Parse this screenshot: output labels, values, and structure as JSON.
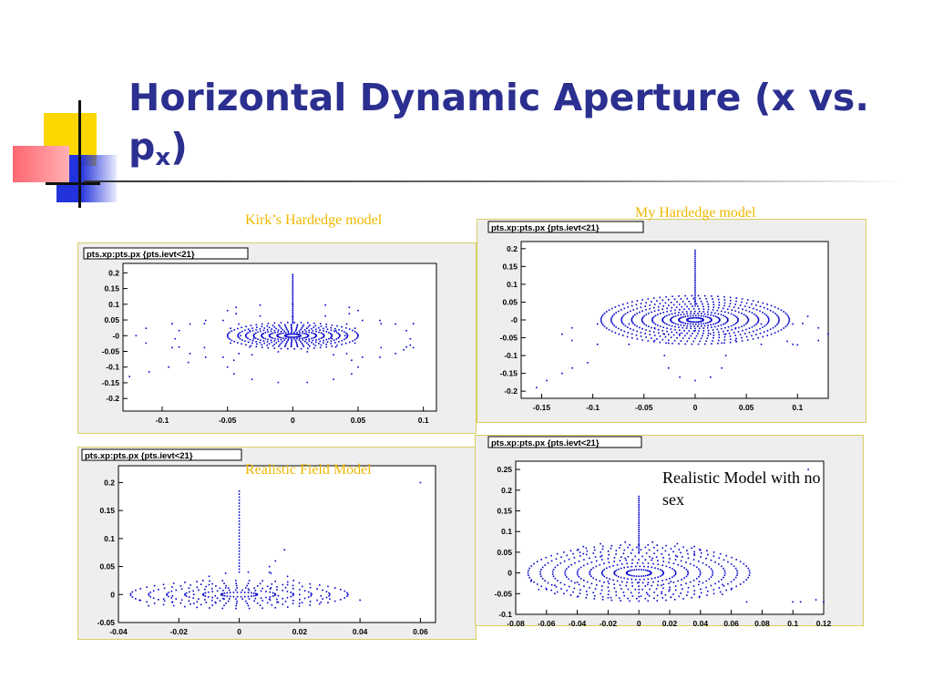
{
  "slide": {
    "title_main": "Horizontal Dynamic Aperture (x vs. p",
    "title_sub": "x",
    "title_close": ")",
    "note": "Realistic Model with no sex",
    "colors": {
      "title": "#2b2f8f",
      "caption": "#f0b800",
      "points": "#0000cc"
    }
  },
  "chart_data": [
    {
      "type": "scatter",
      "title": "pts.xp:pts.px {pts.ievt<21}",
      "caption": "Kirk’s Hardedge model",
      "xlim": [
        -0.13,
        0.11
      ],
      "ylim": [
        -0.24,
        0.23
      ],
      "xticks": [
        -0.1,
        -0.05,
        0,
        0.05,
        0.1
      ],
      "xticklabels": [
        "-0.1",
        "-0.05",
        "0",
        "0.05",
        "0.1"
      ],
      "yticks": [
        0.2,
        0.15,
        0.1,
        0.05,
        0,
        -0.05,
        -0.1,
        -0.15,
        -0.2
      ],
      "yticklabels": [
        "0.2",
        "0.15",
        "0.1",
        "0.05",
        "-0",
        "-0.05",
        "-0.1",
        "-0.15",
        "-0.2"
      ],
      "orbits": [
        [
          0,
          0,
          0.006,
          0.005
        ],
        [
          0,
          0,
          0.012,
          0.01
        ],
        [
          0,
          0,
          0.018,
          0.015
        ],
        [
          0,
          0,
          0.024,
          0.02
        ],
        [
          0,
          0,
          0.03,
          0.025
        ],
        [
          0,
          0,
          0.036,
          0.03
        ],
        [
          0,
          0,
          0.042,
          0.035
        ],
        [
          0,
          0,
          0.05,
          0.042
        ]
      ],
      "chains": [
        [
          -0.06,
          -0.01,
          0.03,
          0.06,
          14
        ],
        [
          0.06,
          -0.01,
          0.03,
          0.06,
          14
        ],
        [
          0,
          0.08,
          0.05,
          0.02,
          12
        ],
        [
          0,
          -0.1,
          0.05,
          0.05,
          14
        ],
        [
          -0.08,
          0,
          0.04,
          0.04,
          10
        ],
        [
          0.08,
          0,
          0.04,
          0.04,
          10
        ]
      ],
      "spike": [
        0,
        0.04,
        0.2
      ],
      "tails": [
        [
          -0.125,
          -0.13
        ],
        [
          -0.11,
          -0.115
        ],
        [
          -0.095,
          -0.1
        ],
        [
          -0.08,
          -0.085
        ],
        [
          0.085,
          -0.045
        ],
        [
          0.09,
          -0.03
        ]
      ]
    },
    {
      "type": "scatter",
      "title": "pts.xp:pts.px {pts.ievt<21}",
      "caption": "My Hardedge model",
      "xlim": [
        -0.17,
        0.13
      ],
      "ylim": [
        -0.22,
        0.22
      ],
      "xticks": [
        -0.15,
        -0.1,
        -0.05,
        0,
        0.05,
        0.1
      ],
      "xticklabels": [
        "-0.15",
        "-0.1",
        "-0.05",
        "0",
        "0.05",
        "0.1"
      ],
      "yticks": [
        0.2,
        0.15,
        0.1,
        0.05,
        0,
        -0.05,
        -0.1,
        -0.15,
        -0.2
      ],
      "yticklabels": [
        "0.2",
        "0.15",
        "0.1",
        "0.05",
        "-0",
        "-0.05",
        "-0.1",
        "-0.15",
        "-0.2"
      ],
      "orbits": [
        [
          0,
          0,
          0.008,
          0.006
        ],
        [
          0,
          0,
          0.016,
          0.012
        ],
        [
          0,
          0,
          0.024,
          0.018
        ],
        [
          0,
          0,
          0.032,
          0.024
        ],
        [
          0,
          0,
          0.042,
          0.031
        ],
        [
          0,
          0,
          0.052,
          0.038
        ],
        [
          0,
          0,
          0.062,
          0.045
        ],
        [
          0,
          0,
          0.072,
          0.052
        ],
        [
          0,
          0,
          0.082,
          0.06
        ],
        [
          0,
          0,
          0.092,
          0.068
        ]
      ],
      "chains": [
        [
          0,
          -0.1,
          0.03,
          0.07,
          12
        ],
        [
          -0.08,
          -0.04,
          0.05,
          0.03,
          10
        ],
        [
          0.08,
          -0.04,
          0.05,
          0.03,
          10
        ]
      ],
      "spike": [
        0,
        0.04,
        0.195
      ],
      "tails": [
        [
          -0.155,
          -0.19
        ],
        [
          -0.145,
          -0.17
        ],
        [
          -0.13,
          -0.15
        ],
        [
          -0.12,
          -0.135
        ],
        [
          -0.105,
          -0.12
        ],
        [
          0.1,
          -0.07
        ],
        [
          0.09,
          -0.06
        ],
        [
          0.11,
          0.01
        ],
        [
          0.105,
          -0.01
        ]
      ]
    },
    {
      "type": "scatter",
      "title": "pts.xp:pts.px {pts.ievt<21}",
      "caption": "Realistic Field Model",
      "xlim": [
        -0.04,
        0.065
      ],
      "ylim": [
        -0.05,
        0.23
      ],
      "xticks": [
        -0.04,
        -0.02,
        0,
        0.02,
        0.04,
        0.06
      ],
      "xticklabels": [
        "-0.04",
        "-0.02",
        "0",
        "0.02",
        "0.04",
        "0.06"
      ],
      "yticks": [
        0.2,
        0.15,
        0.1,
        0.05,
        0,
        -0.05
      ],
      "yticklabels": [
        "0.2",
        "0.15",
        "0.1",
        "0.05",
        "0",
        "-0.05"
      ],
      "orbits": [
        [
          0,
          0,
          0.006,
          0.004
        ],
        [
          0,
          0,
          0.012,
          0.008
        ],
        [
          0,
          0,
          0.018,
          0.012
        ],
        [
          0,
          0,
          0.024,
          0.016
        ],
        [
          0,
          0,
          0.03,
          0.02
        ],
        [
          0,
          0,
          0.036,
          0.025
        ]
      ],
      "chains": [
        [
          0.003,
          0.025,
          0.015,
          0.015,
          12
        ],
        [
          -0.015,
          -0.008,
          0.01,
          0.008,
          8
        ],
        [
          0.02,
          -0.008,
          0.01,
          0.008,
          8
        ]
      ],
      "spike": [
        0,
        0.04,
        0.19
      ],
      "tails": [
        [
          0.01,
          0.05
        ],
        [
          0.012,
          0.06
        ],
        [
          0.015,
          0.08
        ],
        [
          0.01,
          0.04
        ],
        [
          0.06,
          0.2
        ],
        [
          0.036,
          0
        ],
        [
          0.04,
          -0.01
        ],
        [
          -0.033,
          -0.01
        ],
        [
          -0.03,
          -0.02
        ]
      ]
    },
    {
      "type": "scatter",
      "title": "pts.xp:pts.px {pts.ievt<21}",
      "caption": "",
      "xlim": [
        -0.08,
        0.12
      ],
      "ylim": [
        -0.1,
        0.27
      ],
      "xticks": [
        -0.08,
        -0.06,
        -0.04,
        -0.02,
        0,
        0.02,
        0.04,
        0.06,
        0.08,
        0.1,
        0.12
      ],
      "xticklabels": [
        "-0.08",
        "-0.06",
        "-0.04",
        "-0.02",
        "0",
        "0.02",
        "0.04",
        "0.06",
        "0.08",
        "0.1",
        "0.12"
      ],
      "yticks": [
        0.25,
        0.2,
        0.15,
        0.1,
        0.05,
        0,
        -0.05,
        -0.1
      ],
      "yticklabels": [
        "0.25",
        "0.2",
        "0.15",
        "0.1",
        "0.05",
        "0",
        "-0.05",
        "-0.1"
      ],
      "orbits": [
        [
          0,
          0,
          0.008,
          0.008
        ],
        [
          0,
          0,
          0.016,
          0.016
        ],
        [
          0,
          0,
          0.024,
          0.024
        ],
        [
          0,
          0,
          0.032,
          0.032
        ],
        [
          0,
          0,
          0.04,
          0.04
        ],
        [
          0,
          0,
          0.048,
          0.048
        ],
        [
          0,
          0,
          0.056,
          0.056
        ],
        [
          0,
          0,
          0.064,
          0.062
        ],
        [
          0,
          0,
          0.072,
          0.068
        ]
      ],
      "chains": [
        [
          0,
          0.055,
          0.04,
          0.02,
          14
        ],
        [
          -0.02,
          -0.04,
          0.04,
          0.02,
          12
        ],
        [
          0.03,
          -0.04,
          0.03,
          0.02,
          10
        ]
      ],
      "spike": [
        0,
        0.05,
        0.19
      ],
      "tails": [
        [
          0.105,
          -0.07
        ],
        [
          0.115,
          -0.065
        ],
        [
          0.12,
          -0.07
        ],
        [
          0.11,
          0.25
        ],
        [
          0.1,
          -0.07
        ],
        [
          -0.07,
          -0.02
        ],
        [
          -0.065,
          -0.04
        ],
        [
          0.07,
          -0.07
        ]
      ]
    }
  ]
}
